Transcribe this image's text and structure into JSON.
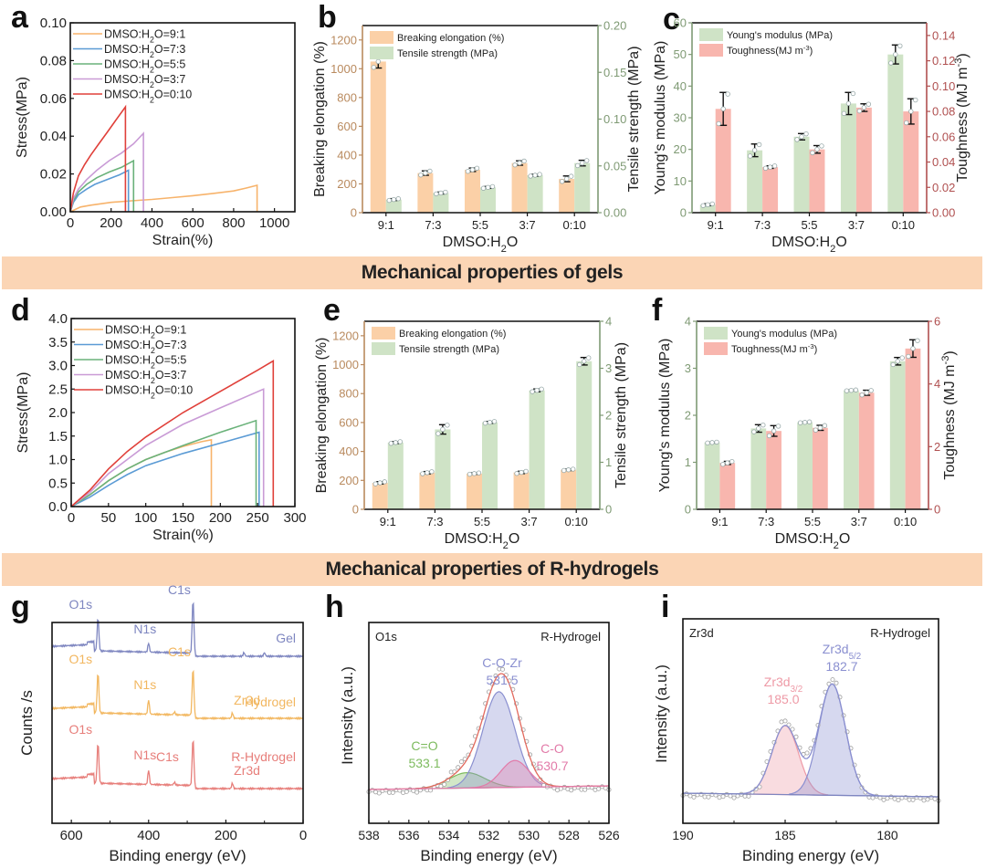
{
  "banners": {
    "gels": "Mechanical properties of gels",
    "rhydrogels": "Mechanical properties of R-hydrogels"
  },
  "colors": {
    "ratio_9_1": "#f7b36b",
    "ratio_7_3": "#5b9bd5",
    "ratio_5_5": "#6ab27a",
    "ratio_3_7": "#c99bd6",
    "ratio_0_10": "#e0403a",
    "orange_bar": "#fbd0a7",
    "green_bar": "#cfe3c6",
    "pink_bar": "#f8b6ae",
    "orange_axis": "#b98a5e",
    "green_axis": "#7f9a74",
    "red_axis": "#b05050",
    "gel": "#7e86c0",
    "hydrogel": "#f2b760",
    "rhydrogel": "#e77e7a",
    "banner": "#fbd5b5"
  },
  "chart_data": [
    {
      "id": "a",
      "panel_label": "a",
      "type": "line",
      "title": "",
      "xlabel": "Strain(%)",
      "ylabel": "Stress(MPa)",
      "xlim": [
        0,
        1100
      ],
      "ylim": [
        0,
        0.1
      ],
      "xticks": [
        "0",
        "200",
        "400",
        "600",
        "800",
        "1000"
      ],
      "xtick_values": [
        0,
        200,
        400,
        600,
        800,
        1000
      ],
      "yticks": [
        "0.00",
        "0.02",
        "0.04",
        "0.06",
        "0.08",
        "0.10"
      ],
      "ytick_values": [
        0,
        0.02,
        0.04,
        0.06,
        0.08,
        0.1
      ],
      "legend": "top-left",
      "series": [
        {
          "name": "DMSO:H2O=9:1",
          "color_key": "ratio_9_1",
          "x": [
            0,
            50,
            100,
            200,
            300,
            400,
            500,
            600,
            700,
            800,
            860,
            915,
            915
          ],
          "y": [
            0,
            0.0025,
            0.0035,
            0.005,
            0.0058,
            0.0065,
            0.0075,
            0.0085,
            0.0097,
            0.011,
            0.0125,
            0.014,
            0
          ]
        },
        {
          "name": "DMSO:H2O=7:3",
          "color_key": "ratio_7_3",
          "x": [
            0,
            15,
            40,
            80,
            120,
            180,
            240,
            285,
            285
          ],
          "y": [
            0,
            0.005,
            0.009,
            0.012,
            0.0145,
            0.017,
            0.0195,
            0.022,
            0
          ]
        },
        {
          "name": "DMSO:H2O=5:5",
          "color_key": "ratio_5_5",
          "x": [
            0,
            15,
            40,
            80,
            130,
            190,
            250,
            310,
            310
          ],
          "y": [
            0,
            0.006,
            0.0105,
            0.0145,
            0.018,
            0.021,
            0.0235,
            0.027,
            0
          ]
        },
        {
          "name": "DMSO:H2O=3:7",
          "color_key": "ratio_3_7",
          "x": [
            0,
            15,
            40,
            80,
            130,
            190,
            250,
            310,
            358,
            358
          ],
          "y": [
            0,
            0.007,
            0.012,
            0.017,
            0.022,
            0.027,
            0.031,
            0.036,
            0.0415,
            0
          ]
        },
        {
          "name": "DMSO:H2O=0:10",
          "color_key": "ratio_0_10",
          "x": [
            0,
            15,
            40,
            70,
            100,
            140,
            180,
            220,
            270,
            270
          ],
          "y": [
            0,
            0.01,
            0.019,
            0.025,
            0.03,
            0.036,
            0.042,
            0.048,
            0.0555,
            0
          ]
        }
      ]
    },
    {
      "id": "b",
      "panel_label": "b",
      "type": "bar",
      "xlabel": "DMSO:H₂O",
      "ylabel": "Breaking elongation (%)",
      "ylabel2": "Tensile strength (MPa)",
      "categories": [
        "9:1",
        "7:3",
        "5:5",
        "3:7",
        "0:10"
      ],
      "ylim": [
        0,
        1300
      ],
      "yticks": [
        "0",
        "200",
        "400",
        "600",
        "800",
        "1000",
        "1200"
      ],
      "ytick_values": [
        0,
        200,
        400,
        600,
        800,
        1000,
        1200
      ],
      "ylim2": [
        0,
        0.2
      ],
      "yticks2": [
        "0.00",
        "0.05",
        "0.10",
        "0.15",
        "0.20"
      ],
      "ytick_values2": [
        0,
        0.05,
        0.1,
        0.15,
        0.2
      ],
      "legend": "top-left",
      "series": [
        {
          "name": "Breaking elongation (%)",
          "axis": "left",
          "color_key": "orange_bar",
          "values": [
            1050,
            275,
            298,
            345,
            235
          ],
          "errors": [
            45,
            15,
            12,
            15,
            20
          ]
        },
        {
          "name": "Tensile strength (MPa)",
          "axis": "right",
          "color_key": "green_bar",
          "values": [
            0.014,
            0.021,
            0.027,
            0.04,
            0.053
          ],
          "errors": [
            0.001,
            0.001,
            0.001,
            0.001,
            0.003
          ]
        }
      ]
    },
    {
      "id": "c",
      "panel_label": "c",
      "type": "bar",
      "xlabel": "DMSO:H₂O",
      "ylabel": "Young's modulus (MPa)",
      "ylabel2": "Toughness (MJ m⁻³)",
      "categories": [
        "9:1",
        "7:3",
        "5:5",
        "3:7",
        "0:10"
      ],
      "ylim": [
        0,
        60
      ],
      "yticks": [
        "0",
        "10",
        "20",
        "30",
        "40",
        "50",
        "60"
      ],
      "ytick_values": [
        0,
        10,
        20,
        30,
        40,
        50,
        60
      ],
      "ylim2": [
        0,
        0.15
      ],
      "yticks2": [
        "0.00",
        "0.02",
        "0.04",
        "0.06",
        "0.08",
        "0.10",
        "0.12",
        "0.14"
      ],
      "ytick_values2": [
        0,
        0.02,
        0.04,
        0.06,
        0.08,
        0.1,
        0.12,
        0.14
      ],
      "legend": "top-left",
      "series": [
        {
          "name": "Young's modulus (MPa)",
          "axis": "left",
          "color_key": "green_bar",
          "values": [
            2.5,
            19.7,
            24.0,
            34.5,
            50.0
          ],
          "errors": [
            0.3,
            2.0,
            1.0,
            3.5,
            3.0
          ]
        },
        {
          "name": "Toughness(MJ m⁻³)",
          "axis": "right",
          "color_key": "pink_bar",
          "values": [
            0.082,
            0.036,
            0.05,
            0.083,
            0.08
          ],
          "errors": [
            0.013,
            0.001,
            0.003,
            0.003,
            0.01
          ]
        }
      ]
    },
    {
      "id": "d",
      "panel_label": "d",
      "type": "line",
      "xlabel": "Strain(%)",
      "ylabel": "Stress(MPa)",
      "xlim": [
        0,
        300
      ],
      "ylim": [
        0,
        4.0
      ],
      "xticks": [
        "0",
        "50",
        "100",
        "150",
        "200",
        "250",
        "300"
      ],
      "xtick_values": [
        0,
        50,
        100,
        150,
        200,
        250,
        300
      ],
      "yticks": [
        "0.0",
        "0.5",
        "1.0",
        "1.5",
        "2.0",
        "2.5",
        "3.0",
        "3.5",
        "4.0"
      ],
      "ytick_values": [
        0,
        0.5,
        1.0,
        1.5,
        2.0,
        2.5,
        3.0,
        3.5,
        4.0
      ],
      "legend": "top-left",
      "series": [
        {
          "name": "DMSO:H2O=9:1",
          "color_key": "ratio_9_1",
          "x": [
            0,
            25,
            50,
            75,
            100,
            125,
            150,
            175,
            188,
            188
          ],
          "y": [
            0,
            0.25,
            0.55,
            0.8,
            1.0,
            1.15,
            1.28,
            1.38,
            1.42,
            0
          ]
        },
        {
          "name": "DMSO:H2O=7:3",
          "color_key": "ratio_7_3",
          "x": [
            0,
            25,
            50,
            75,
            100,
            150,
            200,
            252,
            252
          ],
          "y": [
            0,
            0.2,
            0.45,
            0.68,
            0.87,
            1.13,
            1.35,
            1.58,
            0
          ]
        },
        {
          "name": "DMSO:H2O=5:5",
          "color_key": "ratio_5_5",
          "x": [
            0,
            25,
            50,
            75,
            100,
            150,
            200,
            248,
            248
          ],
          "y": [
            0,
            0.25,
            0.55,
            0.8,
            1.0,
            1.3,
            1.58,
            1.83,
            0
          ]
        },
        {
          "name": "DMSO:H2O=3:7",
          "color_key": "ratio_3_7",
          "x": [
            0,
            25,
            50,
            75,
            100,
            150,
            200,
            258,
            258
          ],
          "y": [
            0,
            0.3,
            0.7,
            1.0,
            1.3,
            1.75,
            2.1,
            2.5,
            0
          ]
        },
        {
          "name": "DMSO:H2O=0:10",
          "color_key": "ratio_0_10",
          "x": [
            0,
            25,
            50,
            75,
            100,
            150,
            200,
            250,
            271,
            271
          ],
          "y": [
            0,
            0.35,
            0.8,
            1.17,
            1.48,
            2.0,
            2.45,
            2.9,
            3.1,
            0
          ]
        }
      ]
    },
    {
      "id": "e",
      "panel_label": "e",
      "type": "bar",
      "xlabel": "DMSO:H₂O",
      "ylabel": "Breaking elongation (%)",
      "ylabel2": "Tensile strength (MPa)",
      "categories": [
        "9:1",
        "7:3",
        "5:5",
        "3:7",
        "0:10"
      ],
      "ylim": [
        0,
        1300
      ],
      "yticks": [
        "0",
        "200",
        "400",
        "600",
        "800",
        "1000",
        "1200"
      ],
      "ytick_values": [
        0,
        200,
        400,
        600,
        800,
        1000,
        1200
      ],
      "ylim2": [
        0,
        4
      ],
      "yticks2": [
        "0",
        "1",
        "2",
        "3",
        "4"
      ],
      "ytick_values2": [
        0,
        1,
        2,
        3,
        4
      ],
      "legend": "top-left",
      "series": [
        {
          "name": "Breaking elongation (%)",
          "axis": "left",
          "color_key": "orange_bar",
          "values": [
            183,
            253,
            247,
            255,
            273
          ],
          "errors": [
            8,
            8,
            5,
            8,
            5
          ]
        },
        {
          "name": "Tensile strength (MPa)",
          "axis": "right",
          "color_key": "green_bar",
          "values": [
            1.42,
            1.7,
            1.85,
            2.53,
            3.15
          ],
          "errors": [
            0.02,
            0.1,
            0.02,
            0.03,
            0.08
          ]
        }
      ]
    },
    {
      "id": "f",
      "panel_label": "f",
      "type": "bar",
      "xlabel": "DMSO:H₂O",
      "ylabel": "Young's modulus (MPa)",
      "ylabel2": "Toughness (MJ m⁻³)",
      "categories": [
        "9:1",
        "7:3",
        "5:5",
        "3:7",
        "0:10"
      ],
      "ylim": [
        0,
        4
      ],
      "yticks": [
        "0",
        "1",
        "2",
        "3",
        "4"
      ],
      "ytick_values": [
        0,
        1,
        2,
        3,
        4
      ],
      "ylim2": [
        0,
        6
      ],
      "yticks2": [
        "0",
        "2",
        "4",
        "6"
      ],
      "ytick_values2": [
        0,
        2,
        4,
        6
      ],
      "legend": "top-left",
      "series": [
        {
          "name": "Young's modulus (MPa)",
          "axis": "left",
          "color_key": "green_bar",
          "values": [
            1.42,
            1.72,
            1.85,
            2.53,
            3.15
          ],
          "errors": [
            0.01,
            0.08,
            0.01,
            0.01,
            0.08
          ]
        },
        {
          "name": "Toughness(MJ m⁻³)",
          "axis": "right",
          "color_key": "pink_bar",
          "values": [
            1.48,
            2.5,
            2.6,
            3.72,
            5.13
          ],
          "errors": [
            0.05,
            0.17,
            0.08,
            0.08,
            0.28
          ]
        }
      ]
    },
    {
      "id": "g",
      "panel_label": "g",
      "type": "line",
      "xlabel": "Binding energy (eV)",
      "ylabel": "Counts /s",
      "xlim": [
        650,
        0
      ],
      "xticks": [
        "600",
        "400",
        "200",
        "0"
      ],
      "xtick_values": [
        600,
        400,
        200,
        0
      ],
      "series": [
        {
          "name": "Gel",
          "color_key": "gel",
          "offset": 2,
          "peaks": [
            {
              "label": "O1s",
              "x": 531
            },
            {
              "label": "N1s",
              "x": 400
            },
            {
              "label": "C1s",
              "x": 285
            }
          ]
        },
        {
          "name": "Hydrogel",
          "color_key": "hydrogel",
          "offset": 1,
          "peaks": [
            {
              "label": "O1s",
              "x": 531
            },
            {
              "label": "N1s",
              "x": 400
            },
            {
              "label": "C1s",
              "x": 285
            },
            {
              "label": "Zr3d",
              "x": 183
            }
          ]
        },
        {
          "name": "R-Hydrogel",
          "color_key": "rhydrogel",
          "offset": 0,
          "peaks": [
            {
              "label": "O1s",
              "x": 531
            },
            {
              "label": "N1s",
              "x": 400
            },
            {
              "label": "C1s",
              "x": 285
            },
            {
              "label": "Zr3d",
              "x": 183
            }
          ]
        }
      ]
    },
    {
      "id": "h",
      "panel_label": "h",
      "type": "line",
      "xlabel": "Binding energy (eV)",
      "ylabel": "Intensity (a.u.)",
      "xlim": [
        538,
        526
      ],
      "xticks": [
        "538",
        "536",
        "534",
        "532",
        "530",
        "528",
        "526"
      ],
      "xtick_values": [
        538,
        536,
        534,
        532,
        530,
        528,
        526
      ],
      "corner_left": "O1s",
      "corner_right": "R-Hydrogel",
      "components": [
        {
          "name": "C=O",
          "center": 533.1,
          "label": "533.1",
          "color": "#7dbb5e",
          "height": 0.16,
          "width": 0.9
        },
        {
          "name": "C-O-Zr",
          "center": 531.5,
          "label": "531.5",
          "color": "#8a8fd0",
          "height": 1.0,
          "width": 0.8
        },
        {
          "name": "C-O",
          "center": 530.7,
          "label": "530.7",
          "color": "#e27aa8",
          "height": 0.28,
          "width": 0.7
        }
      ]
    },
    {
      "id": "i",
      "panel_label": "i",
      "type": "line",
      "xlabel": "Binding energy (eV)",
      "ylabel": "Intensity (a.u.)",
      "xlim": [
        190,
        177.5
      ],
      "xticks": [
        "190",
        "185",
        "180"
      ],
      "xtick_values": [
        190,
        185,
        180
      ],
      "corner_left": "Zr3d",
      "corner_right": "R-Hydrogel",
      "components": [
        {
          "name": "Zr3d3/2",
          "main": "Zr3d",
          "sub": "3/2",
          "center": 185.0,
          "label": "185.0",
          "color": "#ee9aa6",
          "height": 0.62,
          "width": 0.65
        },
        {
          "name": "Zr3d5/2",
          "main": "Zr3d",
          "sub": "5/2",
          "center": 182.7,
          "label": "182.7",
          "color": "#8a8fd0",
          "height": 1.0,
          "width": 0.65
        }
      ]
    }
  ]
}
